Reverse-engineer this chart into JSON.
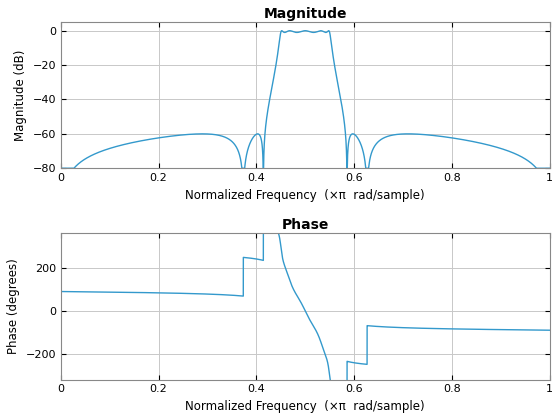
{
  "title_mag": "Magnitude",
  "title_phase": "Phase",
  "xlabel": "Normalized Frequency  (×π  rad/sample)",
  "ylabel_mag": "Magnitude (dB)",
  "ylabel_phase": "Phase (degrees)",
  "ylim_mag": [
    -80,
    5
  ],
  "ylim_phase": [
    -320,
    360
  ],
  "xlim": [
    0,
    1
  ],
  "line_color": "#3399cc",
  "line_width": 1.0,
  "bg_color": "#ffffff",
  "grid_color": "#c8c8c8"
}
